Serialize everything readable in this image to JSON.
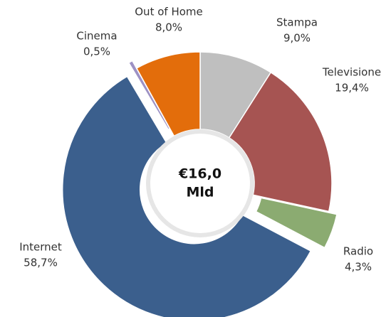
{
  "chart_data": {
    "type": "donut",
    "categories": [
      "Stampa",
      "Televisione",
      "Radio",
      "Internet",
      "Cinema",
      "Out of Home"
    ],
    "values": [
      9.0,
      19.4,
      4.3,
      58.7,
      0.5,
      8.0
    ],
    "value_labels": [
      "9,0%",
      "19,4%",
      "4,3%",
      "58,7%",
      "0,5%",
      "8,0%"
    ],
    "colors": [
      "#bfbfbf",
      "#a65452",
      "#8bab71",
      "#3b5f8d",
      "#9d91c4",
      "#e36d0b"
    ],
    "exploded": [
      false,
      false,
      true,
      true,
      true,
      false
    ],
    "center_label": [
      "€16,0",
      "Mld"
    ]
  }
}
